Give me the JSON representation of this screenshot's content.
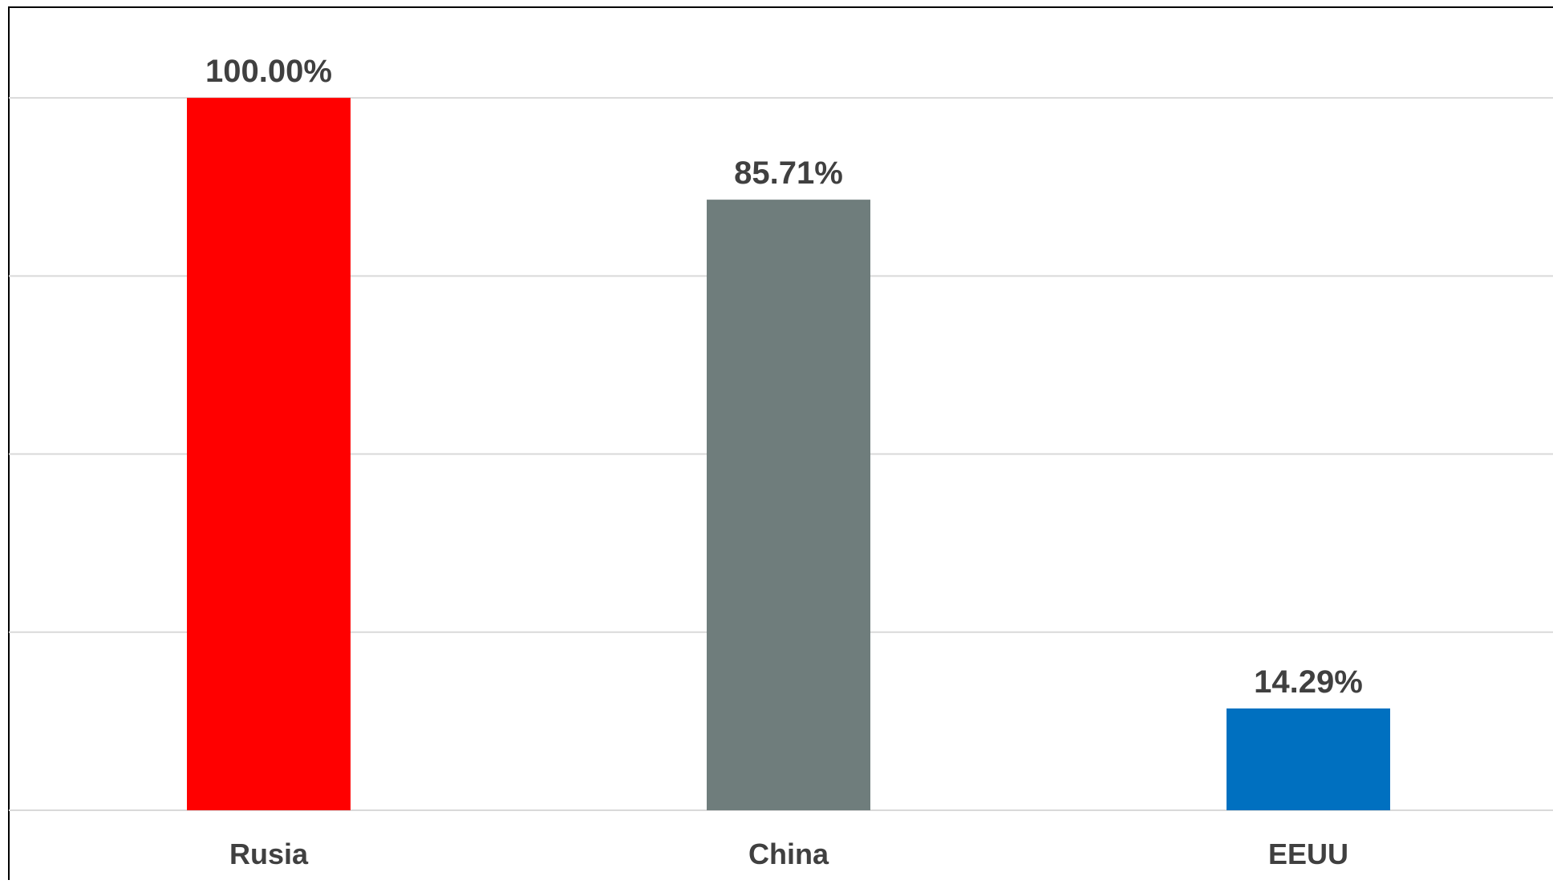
{
  "chart_data": {
    "type": "bar",
    "categories": [
      "Rusia",
      "China",
      "EEUU"
    ],
    "values": [
      100.0,
      85.71,
      14.29
    ],
    "data_labels": [
      "100.00%",
      "85.71%",
      "14.29%"
    ],
    "colors": [
      "#ff0000",
      "#6f7d7c",
      "#0070c0"
    ],
    "ylim": [
      0,
      112.5
    ],
    "grid": true,
    "gridline_values": [
      0,
      25,
      50,
      75,
      100
    ],
    "gridline_color": "#d9d9d9",
    "label_color": "#404040",
    "title": "",
    "xlabel": "",
    "ylabel": ""
  }
}
